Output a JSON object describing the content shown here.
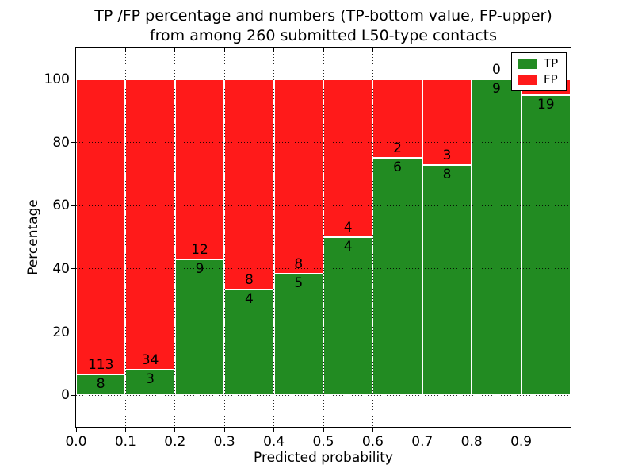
{
  "figure": {
    "title_line1": "TP /FP percentage and numbers (TP-bottom value, FP-upper)",
    "title_line2": "from among 260 submitted L50-type contacts"
  },
  "chart_data": {
    "type": "bar",
    "variant": "stacked-100-percent-histogram",
    "title": "TP /FP percentage and numbers (TP-bottom value, FP-upper) from among 260 submitted L50-type contacts",
    "xlabel": "Predicted probability",
    "ylabel": "Percentage",
    "xlim": [
      0.0,
      1.0
    ],
    "ylim": [
      -10,
      110
    ],
    "grid": true,
    "total_contacts": 260,
    "bin_width": 0.1,
    "bin_starts": [
      0.0,
      0.1,
      0.2,
      0.3,
      0.4,
      0.5,
      0.6,
      0.7,
      0.8,
      0.9
    ],
    "x_ticks": [
      0.0,
      0.1,
      0.2,
      0.3,
      0.4,
      0.5,
      0.6,
      0.7,
      0.8,
      0.9
    ],
    "x_tick_labels": [
      "0.0",
      "0.1",
      "0.2",
      "0.3",
      "0.4",
      "0.5",
      "0.6",
      "0.7",
      "0.8",
      "0.9"
    ],
    "y_ticks": [
      0,
      20,
      40,
      60,
      80,
      100
    ],
    "y_tick_labels": [
      "0",
      "20",
      "40",
      "60",
      "80",
      "100"
    ],
    "series": [
      {
        "name": "TP",
        "color": "#228b22",
        "counts": [
          8,
          3,
          9,
          4,
          5,
          4,
          6,
          8,
          9,
          19
        ]
      },
      {
        "name": "FP",
        "color": "#ff1a1a",
        "counts": [
          113,
          34,
          12,
          8,
          8,
          4,
          2,
          3,
          0,
          1
        ]
      }
    ],
    "legend": {
      "position": "upper right",
      "entries": [
        {
          "label": "TP",
          "color": "#228b22"
        },
        {
          "label": "FP",
          "color": "#ff1a1a"
        }
      ]
    }
  },
  "colors": {
    "tp": "#228b22",
    "fp": "#ff1a1a",
    "bar_edge": "#ffffff",
    "grid": "#000000",
    "text": "#000000",
    "background": "#ffffff"
  }
}
